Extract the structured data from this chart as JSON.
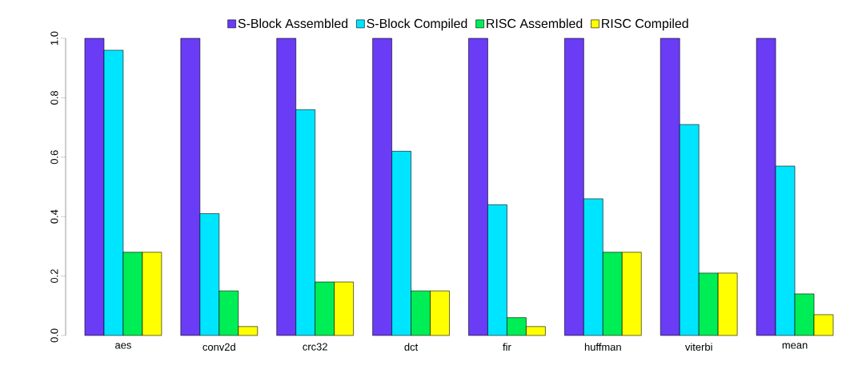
{
  "chart_data": {
    "type": "bar",
    "categories": [
      "aes",
      "conv2d",
      "crc32",
      "dct",
      "fir",
      "huffman",
      "viterbi",
      "mean"
    ],
    "series": [
      {
        "name": "S-Block Assembled",
        "color": "#6a3cf5",
        "values": [
          1.0,
          1.0,
          1.0,
          1.0,
          1.0,
          1.0,
          1.0,
          1.0
        ]
      },
      {
        "name": "S-Block Compiled",
        "color": "#00e5ff",
        "values": [
          0.96,
          0.41,
          0.76,
          0.62,
          0.44,
          0.46,
          0.71,
          0.57
        ]
      },
      {
        "name": "RISC Assembled",
        "color": "#00ee55",
        "values": [
          0.28,
          0.15,
          0.18,
          0.15,
          0.06,
          0.28,
          0.21,
          0.14
        ]
      },
      {
        "name": "RISC Compiled",
        "color": "#ffff00",
        "values": [
          0.28,
          0.03,
          0.18,
          0.15,
          0.03,
          0.28,
          0.21,
          0.07
        ]
      }
    ],
    "ylim": [
      0,
      1
    ],
    "yticks": [
      {
        "value": 0,
        "label": "0.0"
      },
      {
        "value": 0.2,
        "label": "0.2"
      },
      {
        "value": 0.4,
        "label": "0.4"
      },
      {
        "value": 0.6,
        "label": "0.6"
      },
      {
        "value": 0.8,
        "label": "0.8"
      },
      {
        "value": 1,
        "label": "1.0"
      }
    ],
    "legend": "top"
  }
}
